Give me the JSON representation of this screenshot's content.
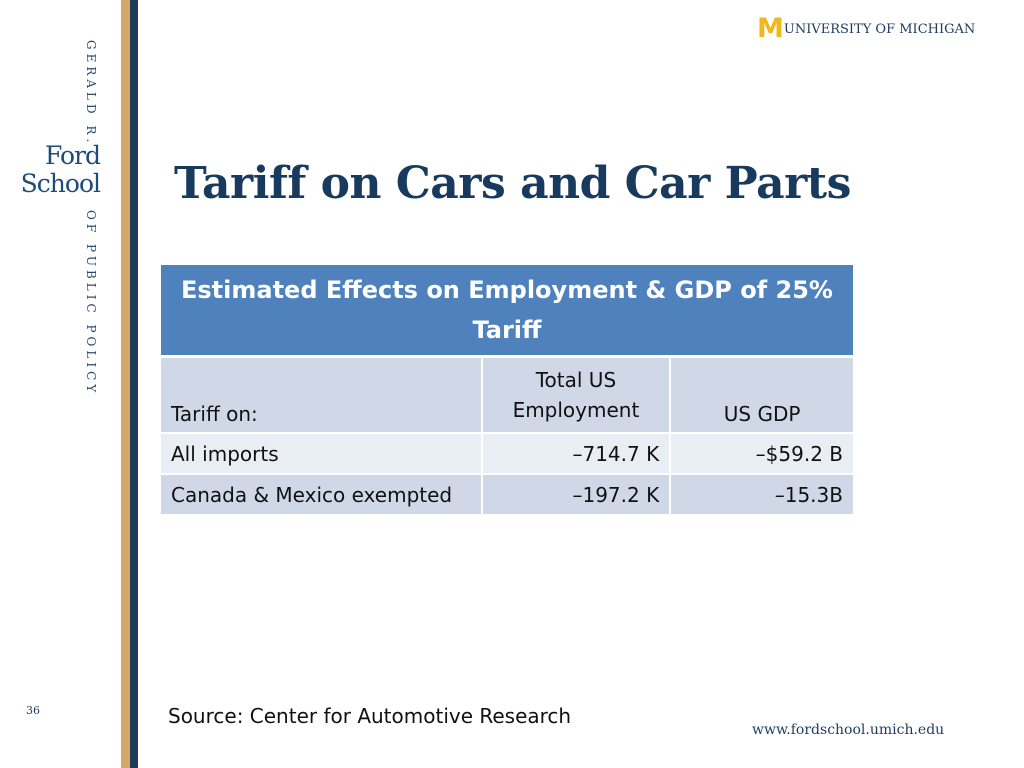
{
  "branding": {
    "school_vertical_top": "GERALD R.",
    "school_line1": "Ford",
    "school_line2": "School",
    "school_vertical_bottom": "OF PUBLIC POLICY",
    "university_mark": "M",
    "university_name": "UNIVERSITY OF MICHIGAN",
    "accent_gold": "#d3a868",
    "accent_navy": "#1f3b5c",
    "maize": "#f0b81a"
  },
  "slide": {
    "title": "Tariff on Cars and Car Parts",
    "page_number": "36",
    "source": "Source:  Center for Automotive Research",
    "website": "www.fordschool.umich.edu"
  },
  "table": {
    "title": "Estimated Effects on Employment & GDP of 25% Tariff",
    "header_color": "#4f81bd",
    "columns": {
      "label": "Tariff on:",
      "employment_line1": "Total US",
      "employment_line2": "Employment",
      "gdp": "US GDP"
    },
    "rows": [
      {
        "label": "All imports",
        "employment": "–714.7 K",
        "gdp": "–$59.2 B"
      },
      {
        "label": "Canada & Mexico exempted",
        "employment": "–197.2 K",
        "gdp": "–15.3B"
      }
    ]
  }
}
